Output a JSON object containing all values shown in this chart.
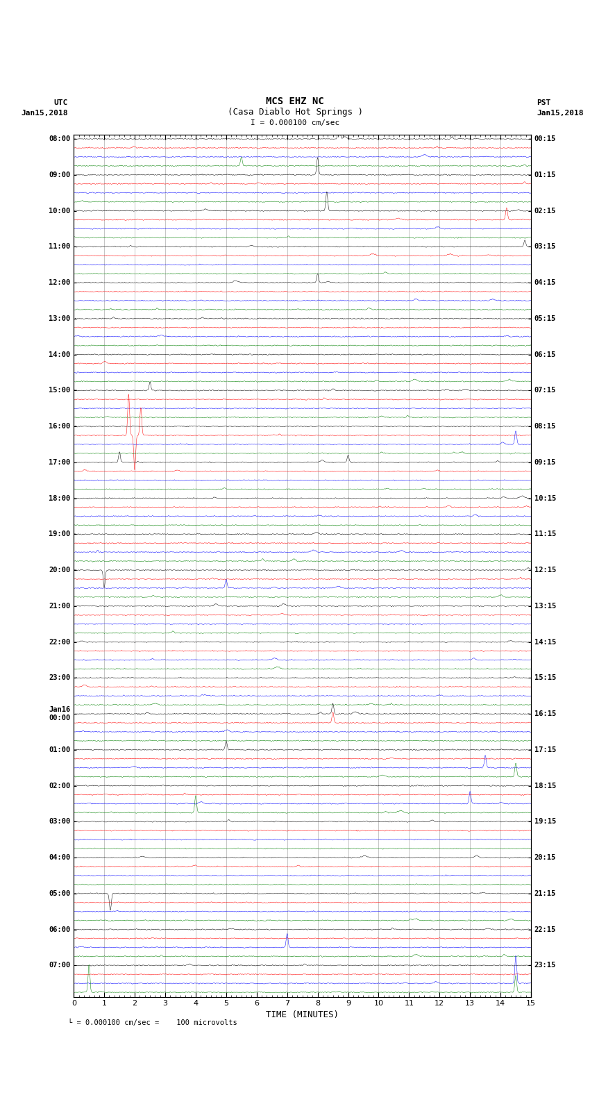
{
  "title_line1": "MCS EHZ NC",
  "title_line2": "(Casa Diablo Hot Springs )",
  "scale_text": "I = 0.000100 cm/sec",
  "left_label": "UTC",
  "left_date": "Jan15,2018",
  "right_label": "PST",
  "right_date": "Jan15,2018",
  "bottom_note": "= 0.000100 cm/sec =    100 microvolts",
  "xlabel": "TIME (MINUTES)",
  "utc_times": [
    "08:00",
    "09:00",
    "10:00",
    "11:00",
    "12:00",
    "13:00",
    "14:00",
    "15:00",
    "16:00",
    "17:00",
    "18:00",
    "19:00",
    "20:00",
    "21:00",
    "22:00",
    "23:00",
    "Jan16\n00:00",
    "01:00",
    "02:00",
    "03:00",
    "04:00",
    "05:00",
    "06:00",
    "07:00"
  ],
  "pst_times": [
    "00:15",
    "01:15",
    "02:15",
    "03:15",
    "04:15",
    "05:15",
    "06:15",
    "07:15",
    "08:15",
    "09:15",
    "10:15",
    "11:15",
    "12:15",
    "13:15",
    "14:15",
    "15:15",
    "16:15",
    "17:15",
    "18:15",
    "19:15",
    "20:15",
    "21:15",
    "22:15",
    "23:15"
  ],
  "trace_colors": [
    "black",
    "red",
    "blue",
    "green"
  ],
  "num_hours": 24,
  "traces_per_hour": 4,
  "xmin": 0,
  "xmax": 15,
  "noise_amplitude": 0.08,
  "bg_color": "white",
  "trace_linewidth": 0.35,
  "trace_scale": 0.32
}
